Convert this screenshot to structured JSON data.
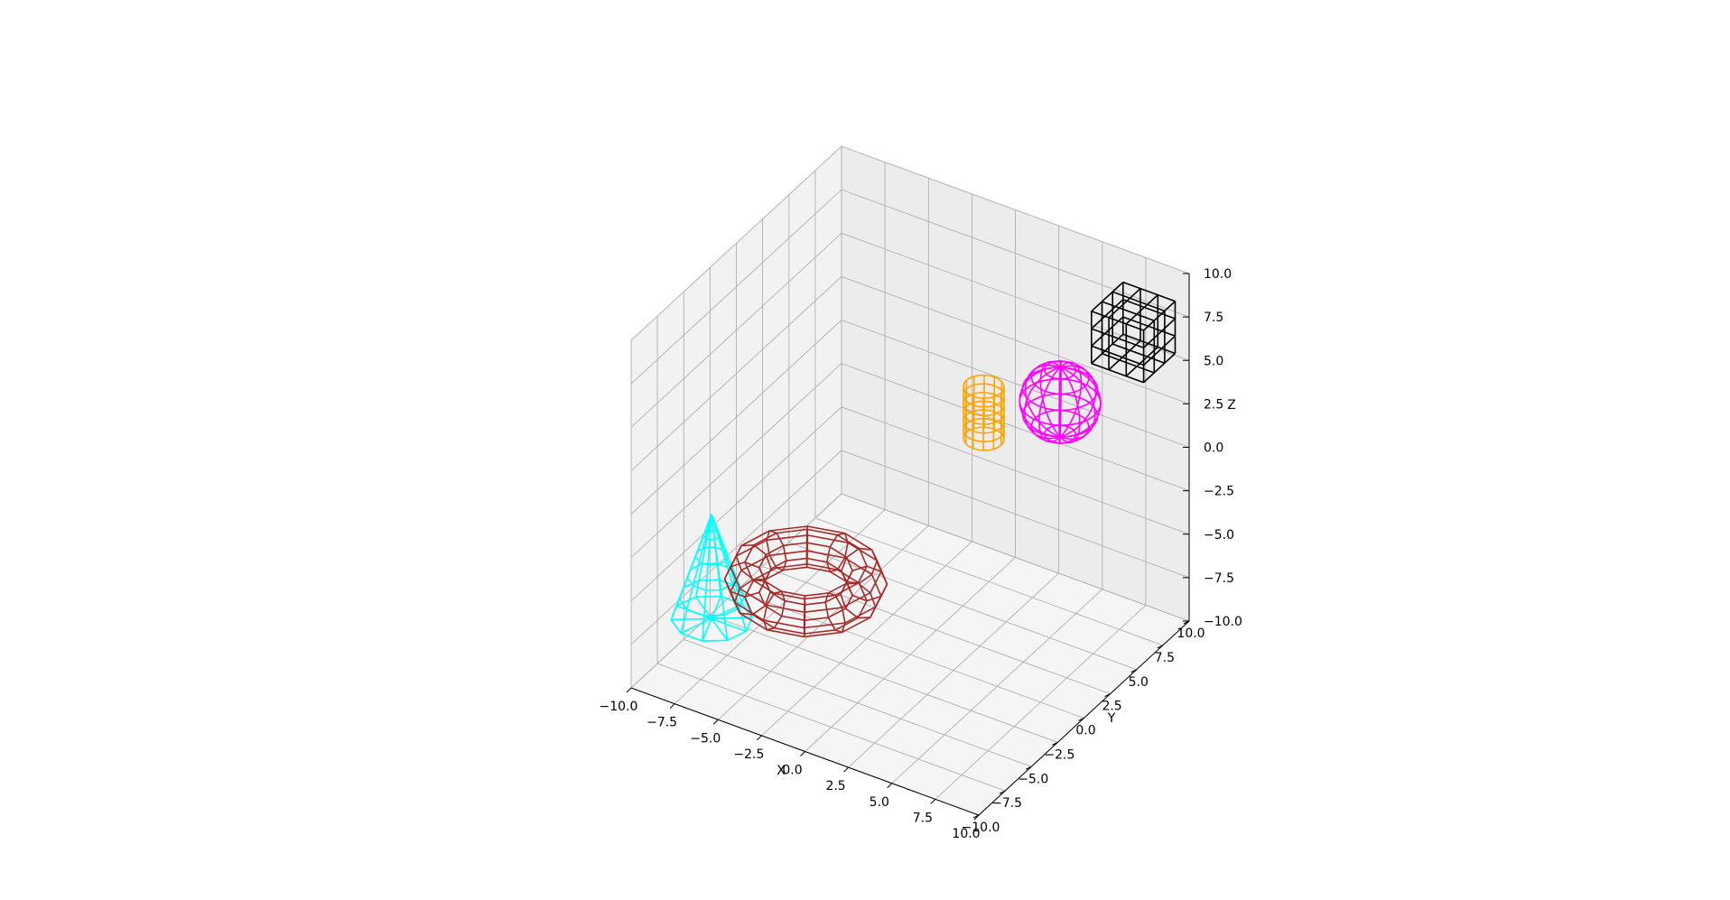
{
  "chart_data": {
    "type": "wireframe3d",
    "axes": {
      "xlabel": "X",
      "ylabel": "Y",
      "zlabel": "Z",
      "xlim": [
        -10,
        10
      ],
      "ylim": [
        -10,
        10
      ],
      "zlim": [
        -10,
        10
      ],
      "xticks": [
        "−10.0",
        "−7.5",
        "−5.0",
        "−2.5",
        "0.0",
        "2.5",
        "5.0",
        "7.5",
        "10.0"
      ],
      "yticks": [
        "−10.0",
        "−7.5",
        "−5.0",
        "−2.5",
        "0.0",
        "2.5",
        "5.0",
        "7.5",
        "10.0"
      ],
      "zticks": [
        "−10.0",
        "−7.5",
        "−5.0",
        "−2.5",
        "0.0",
        "2.5",
        "5.0",
        "7.5",
        "10.0"
      ],
      "grid": true
    },
    "objects": [
      {
        "shape": "cone",
        "color": "#00ffff",
        "center": [
          -9,
          -4,
          -9
        ],
        "radius": 2,
        "height": 6
      },
      {
        "shape": "torus",
        "color": "#a52a2a",
        "center": [
          -6,
          0,
          -8
        ],
        "major_radius": 3,
        "minor_radius": 1
      },
      {
        "shape": "cylinder",
        "color": "#ffa500",
        "center": [
          0,
          7,
          0
        ],
        "radius": 1,
        "height": 3
      },
      {
        "shape": "sphere",
        "color": "#ff00ff",
        "center": [
          5,
          6,
          3
        ],
        "radius": 2
      },
      {
        "shape": "cube",
        "color": "#000000",
        "center": [
          8,
          8,
          7
        ],
        "size": 3
      }
    ]
  }
}
